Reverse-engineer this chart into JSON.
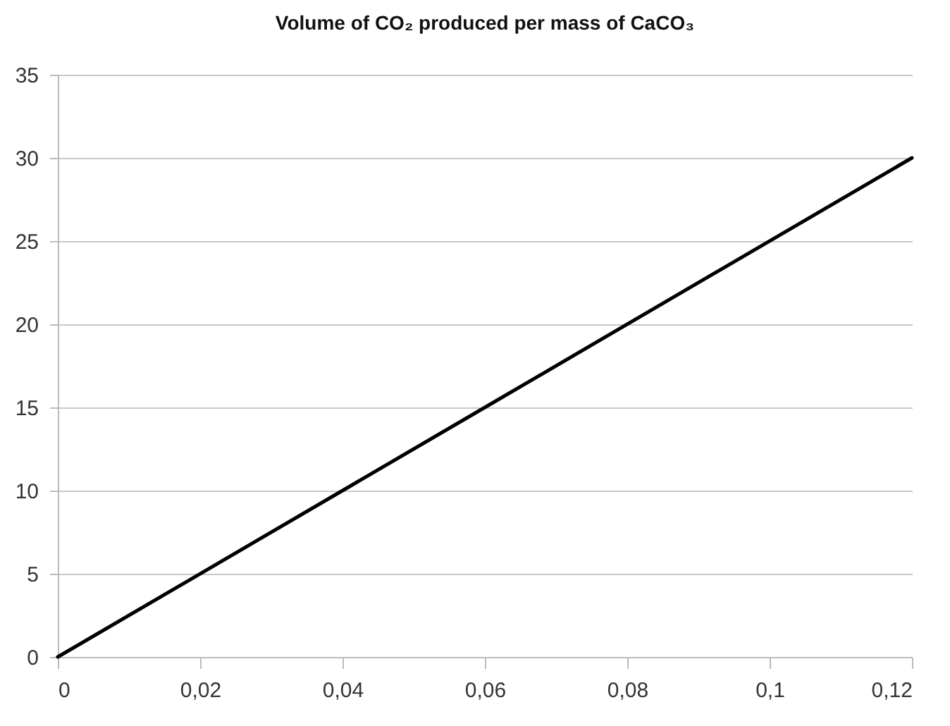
{
  "chart_data": {
    "type": "line",
    "title": "Volume of CO₂ produced per mass of CaCO₃",
    "x": [
      0,
      0.06,
      0.12
    ],
    "series": [
      {
        "color": "#000000",
        "values": [
          0,
          15,
          30
        ]
      }
    ],
    "xlim": [
      0,
      0.12
    ],
    "xticks": [
      0,
      {
        "value": 0.02,
        "label": "0,02"
      },
      {
        "value": 0.04,
        "label": "0,04"
      },
      {
        "value": 0.06,
        "label": "0,06"
      },
      {
        "value": 0.08,
        "label": "0,08"
      },
      {
        "value": 0.1,
        "label": "0,1"
      },
      {
        "value": 0.12,
        "label": "0,12"
      }
    ],
    "ylim": [
      0,
      35
    ],
    "yticks": [
      0,
      5,
      10,
      15,
      20,
      25,
      30,
      35
    ],
    "grid": "y",
    "marker": "none",
    "line_style": "solid"
  }
}
